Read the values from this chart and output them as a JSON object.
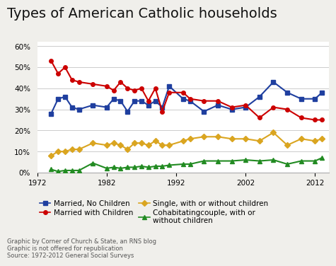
{
  "title": "Types of American Catholic households",
  "ylim": [
    0,
    0.62
  ],
  "xlim": [
    1972,
    2014
  ],
  "yticks": [
    0.0,
    0.1,
    0.2,
    0.3,
    0.4,
    0.5,
    0.6
  ],
  "ytick_labels": [
    "0%",
    "10%",
    "20%",
    "30%",
    "40%",
    "50%",
    "60%"
  ],
  "xticks": [
    1972,
    1982,
    1992,
    2002,
    2012
  ],
  "footnote": "Graphic by Corner of Church & State, an RNS blog\nGraphic is not offered for republication\nSource: 1972-2012 General Social Surveys",
  "series": {
    "married_no_children": {
      "color": "#1F3F9F",
      "marker": "s",
      "label": "Married, No Children",
      "data": [
        [
          1974,
          0.28
        ],
        [
          1975,
          0.35
        ],
        [
          1976,
          0.36
        ],
        [
          1977,
          0.31
        ],
        [
          1978,
          0.3
        ],
        [
          1980,
          0.32
        ],
        [
          1982,
          0.31
        ],
        [
          1983,
          0.35
        ],
        [
          1984,
          0.34
        ],
        [
          1985,
          0.29
        ],
        [
          1986,
          0.34
        ],
        [
          1987,
          0.34
        ],
        [
          1988,
          0.32
        ],
        [
          1989,
          0.34
        ],
        [
          1990,
          0.31
        ],
        [
          1991,
          0.41
        ],
        [
          1993,
          0.35
        ],
        [
          1994,
          0.34
        ],
        [
          1996,
          0.29
        ],
        [
          1998,
          0.32
        ],
        [
          2000,
          0.3
        ],
        [
          2002,
          0.31
        ],
        [
          2004,
          0.36
        ],
        [
          2006,
          0.43
        ],
        [
          2008,
          0.38
        ],
        [
          2010,
          0.35
        ],
        [
          2012,
          0.35
        ],
        [
          2013,
          0.38
        ]
      ]
    },
    "married_with_children": {
      "color": "#CC0000",
      "marker": "o",
      "label": "Married with Children",
      "data": [
        [
          1974,
          0.53
        ],
        [
          1975,
          0.47
        ],
        [
          1976,
          0.5
        ],
        [
          1977,
          0.44
        ],
        [
          1978,
          0.43
        ],
        [
          1980,
          0.42
        ],
        [
          1982,
          0.41
        ],
        [
          1983,
          0.39
        ],
        [
          1984,
          0.43
        ],
        [
          1985,
          0.4
        ],
        [
          1986,
          0.39
        ],
        [
          1987,
          0.4
        ],
        [
          1988,
          0.34
        ],
        [
          1989,
          0.4
        ],
        [
          1990,
          0.29
        ],
        [
          1991,
          0.38
        ],
        [
          1993,
          0.38
        ],
        [
          1994,
          0.35
        ],
        [
          1996,
          0.34
        ],
        [
          1998,
          0.34
        ],
        [
          2000,
          0.31
        ],
        [
          2002,
          0.32
        ],
        [
          2004,
          0.26
        ],
        [
          2006,
          0.31
        ],
        [
          2008,
          0.3
        ],
        [
          2010,
          0.26
        ],
        [
          2012,
          0.25
        ],
        [
          2013,
          0.25
        ]
      ]
    },
    "single": {
      "color": "#DAA520",
      "marker": "D",
      "label": "Single, with or without children",
      "data": [
        [
          1974,
          0.08
        ],
        [
          1975,
          0.1
        ],
        [
          1976,
          0.1
        ],
        [
          1977,
          0.11
        ],
        [
          1978,
          0.11
        ],
        [
          1980,
          0.14
        ],
        [
          1982,
          0.13
        ],
        [
          1983,
          0.14
        ],
        [
          1984,
          0.13
        ],
        [
          1985,
          0.11
        ],
        [
          1986,
          0.14
        ],
        [
          1987,
          0.14
        ],
        [
          1988,
          0.13
        ],
        [
          1989,
          0.15
        ],
        [
          1990,
          0.13
        ],
        [
          1991,
          0.13
        ],
        [
          1993,
          0.15
        ],
        [
          1994,
          0.16
        ],
        [
          1996,
          0.17
        ],
        [
          1998,
          0.17
        ],
        [
          2000,
          0.16
        ],
        [
          2002,
          0.16
        ],
        [
          2004,
          0.15
        ],
        [
          2006,
          0.19
        ],
        [
          2008,
          0.13
        ],
        [
          2010,
          0.16
        ],
        [
          2012,
          0.15
        ],
        [
          2013,
          0.16
        ]
      ]
    },
    "cohabiting": {
      "color": "#228B22",
      "marker": "^",
      "label": "Cohabitatingcouple, with or\nwithout children",
      "data": [
        [
          1974,
          0.015
        ],
        [
          1975,
          0.005
        ],
        [
          1976,
          0.01
        ],
        [
          1977,
          0.01
        ],
        [
          1978,
          0.01
        ],
        [
          1980,
          0.045
        ],
        [
          1982,
          0.02
        ],
        [
          1983,
          0.025
        ],
        [
          1984,
          0.02
        ],
        [
          1985,
          0.025
        ],
        [
          1986,
          0.025
        ],
        [
          1987,
          0.03
        ],
        [
          1988,
          0.025
        ],
        [
          1989,
          0.03
        ],
        [
          1990,
          0.03
        ],
        [
          1991,
          0.035
        ],
        [
          1993,
          0.04
        ],
        [
          1994,
          0.04
        ],
        [
          1996,
          0.055
        ],
        [
          1998,
          0.055
        ],
        [
          2000,
          0.055
        ],
        [
          2002,
          0.06
        ],
        [
          2004,
          0.055
        ],
        [
          2006,
          0.06
        ],
        [
          2008,
          0.04
        ],
        [
          2010,
          0.055
        ],
        [
          2012,
          0.055
        ],
        [
          2013,
          0.07
        ]
      ]
    }
  },
  "background_color": "#F0EFEB",
  "plot_bg_color": "#FFFFFF",
  "title_fontsize": 14,
  "tick_fontsize": 7.5,
  "legend_fontsize": 7.5,
  "marker_size": 4,
  "linewidth": 1.5
}
